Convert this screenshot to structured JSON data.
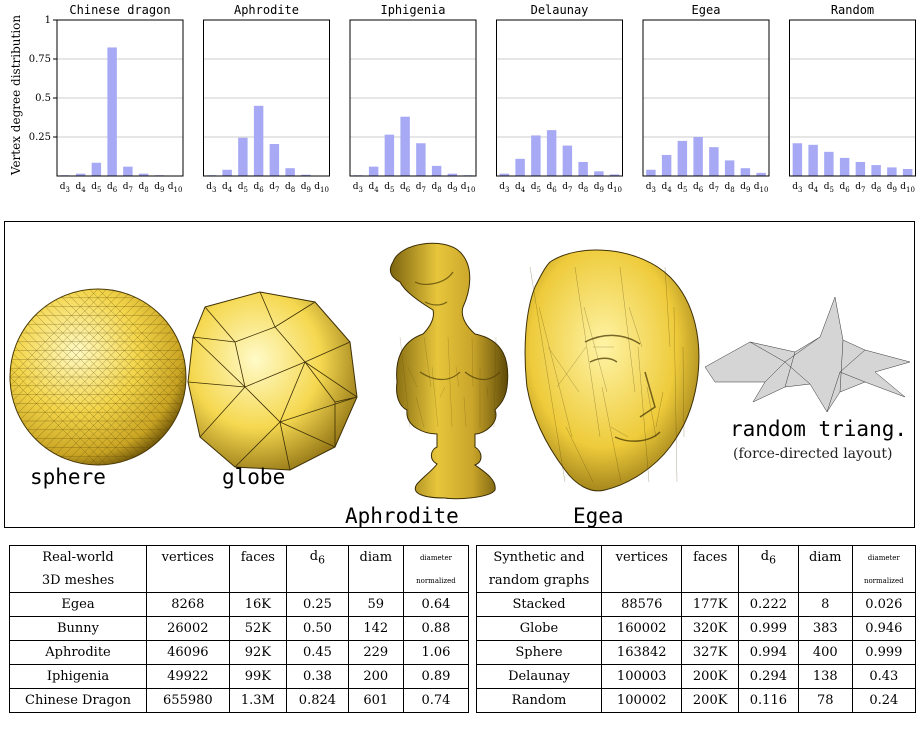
{
  "colors": {
    "bar": "#a7a9f4",
    "mesh_yellow": "#f4d64b",
    "mesh_dark": "#8a6d10",
    "grid": "#bbbbbb"
  },
  "ylabel": "Vertex degree distribution",
  "chart_data": [
    {
      "type": "bar",
      "title": "Chinese dragon",
      "categories": [
        "d3",
        "d4",
        "d5",
        "d6",
        "d7",
        "d8",
        "d9",
        "d10"
      ],
      "values": [
        0.005,
        0.015,
        0.085,
        0.824,
        0.06,
        0.015,
        0.005,
        0.003
      ],
      "ylim": [
        0,
        1
      ],
      "yticks": [
        "0.25",
        "0.5",
        "0.75",
        "1"
      ],
      "grid": true
    },
    {
      "type": "bar",
      "title": "Aphrodite",
      "categories": [
        "d3",
        "d4",
        "d5",
        "d6",
        "d7",
        "d8",
        "d9",
        "d10"
      ],
      "values": [
        0.005,
        0.04,
        0.245,
        0.45,
        0.205,
        0.05,
        0.008,
        0.003
      ],
      "ylim": [
        0,
        1
      ],
      "grid": true
    },
    {
      "type": "bar",
      "title": "Iphigenia",
      "categories": [
        "d3",
        "d4",
        "d5",
        "d6",
        "d7",
        "d8",
        "d9",
        "d10"
      ],
      "values": [
        0.005,
        0.06,
        0.265,
        0.38,
        0.21,
        0.065,
        0.015,
        0.005
      ],
      "ylim": [
        0,
        1
      ],
      "grid": true
    },
    {
      "type": "bar",
      "title": "Delaunay",
      "categories": [
        "d3",
        "d4",
        "d5",
        "d6",
        "d7",
        "d8",
        "d9",
        "d10"
      ],
      "values": [
        0.015,
        0.11,
        0.26,
        0.294,
        0.195,
        0.09,
        0.03,
        0.01
      ],
      "ylim": [
        0,
        1
      ],
      "grid": true
    },
    {
      "type": "bar",
      "title": "Egea",
      "categories": [
        "d3",
        "d4",
        "d5",
        "d6",
        "d7",
        "d8",
        "d9",
        "d10"
      ],
      "values": [
        0.04,
        0.135,
        0.225,
        0.25,
        0.185,
        0.1,
        0.05,
        0.02
      ],
      "ylim": [
        0,
        1
      ],
      "grid": true
    },
    {
      "type": "bar",
      "title": "Random",
      "categories": [
        "d3",
        "d4",
        "d5",
        "d6",
        "d7",
        "d8",
        "d9",
        "d10"
      ],
      "values": [
        0.21,
        0.2,
        0.155,
        0.116,
        0.09,
        0.07,
        0.055,
        0.045
      ],
      "ylim": [
        0,
        1
      ],
      "grid": true
    }
  ],
  "meshes": {
    "sphere": "sphere",
    "globe": "globe",
    "aphrodite": "Aphrodite",
    "egea": "Egea",
    "random": "random triang.",
    "random_sub": "(force-directed layout)"
  },
  "table_left": {
    "h1": "Real-world",
    "h1b": "3D meshes",
    "vertices": "vertices",
    "faces": "faces",
    "d": "d",
    "dsub": "6",
    "diam": "diam",
    "norm1": "diameter",
    "norm2": "normalized",
    "rows": [
      [
        "Egea",
        "8268",
        "16K",
        "0.25",
        "59",
        "0.64"
      ],
      [
        "Bunny",
        "26002",
        "52K",
        "0.50",
        "142",
        "0.88"
      ],
      [
        "Aphrodite",
        "46096",
        "92K",
        "0.45",
        "229",
        "1.06"
      ],
      [
        "Iphigenia",
        "49922",
        "99K",
        "0.38",
        "200",
        "0.89"
      ],
      [
        "Chinese Dragon",
        "655980",
        "1.3M",
        "0.824",
        "601",
        "0.74"
      ]
    ]
  },
  "table_right": {
    "h1": "Synthetic and",
    "h1b": "random graphs",
    "vertices": "vertices",
    "faces": "faces",
    "d": "d",
    "dsub": "6",
    "diam": "diam",
    "norm1": "diameter",
    "norm2": "normalized",
    "rows": [
      [
        "Stacked",
        "88576",
        "177K",
        "0.222",
        "8",
        "0.026"
      ],
      [
        "Globe",
        "160002",
        "320K",
        "0.999",
        "383",
        "0.946"
      ],
      [
        "Sphere",
        "163842",
        "327K",
        "0.994",
        "400",
        "0.999"
      ],
      [
        "Delaunay",
        "100003",
        "200K",
        "0.294",
        "138",
        "0.43"
      ],
      [
        "Random",
        "100002",
        "200K",
        "0.116",
        "78",
        "0.24"
      ]
    ]
  }
}
